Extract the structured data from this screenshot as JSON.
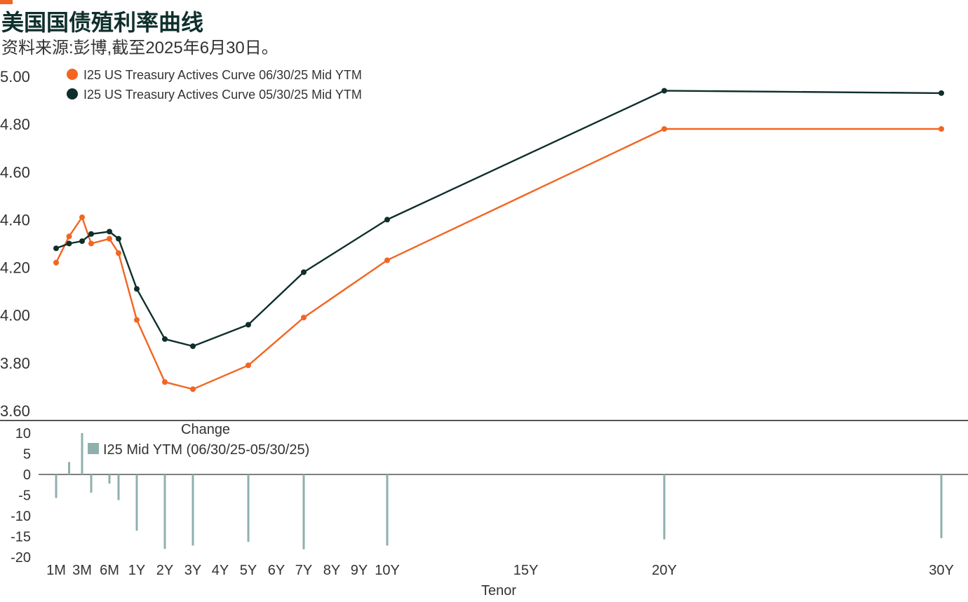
{
  "header": {
    "title": "美国国债殖利率曲线",
    "subtitle": "资料来源:彭博,截至2025年6月30日。"
  },
  "colors": {
    "accent": "#f26522",
    "series_jun": "#f26522",
    "series_may": "#0f2f2c",
    "change_bars": "#8fb0ad",
    "axis": "#555555",
    "text": "#333333"
  },
  "chart_data": [
    {
      "type": "line",
      "x_label_map": "tenor in years",
      "ylim": [
        3.6,
        5.0
      ],
      "y_ticks": [
        "5.00",
        "4.80",
        "4.60",
        "4.40",
        "4.20",
        "4.00",
        "3.80",
        "3.60"
      ],
      "legend_position": "top-left",
      "grid": false,
      "series": [
        {
          "name": "I25 US Treasury Actives Curve 06/30/25 Mid YTM",
          "color": "#f26522",
          "points": [
            {
              "tenor": 0.0833,
              "y": 4.22
            },
            {
              "tenor": 0.1667,
              "y": 4.33
            },
            {
              "tenor": 0.25,
              "y": 4.41
            },
            {
              "tenor": 0.3333,
              "y": 4.3
            },
            {
              "tenor": 0.5,
              "y": 4.32
            },
            {
              "tenor": 0.6667,
              "y": 4.26
            },
            {
              "tenor": 1,
              "y": 3.98
            },
            {
              "tenor": 2,
              "y": 3.72
            },
            {
              "tenor": 3,
              "y": 3.69
            },
            {
              "tenor": 5,
              "y": 3.79
            },
            {
              "tenor": 7,
              "y": 3.99
            },
            {
              "tenor": 10,
              "y": 4.23
            },
            {
              "tenor": 20,
              "y": 4.78
            },
            {
              "tenor": 30,
              "y": 4.78
            }
          ]
        },
        {
          "name": "I25 US Treasury Actives Curve 05/30/25 Mid YTM",
          "color": "#0f2f2c",
          "points": [
            {
              "tenor": 0.0833,
              "y": 4.28
            },
            {
              "tenor": 0.1667,
              "y": 4.3
            },
            {
              "tenor": 0.25,
              "y": 4.31
            },
            {
              "tenor": 0.3333,
              "y": 4.34
            },
            {
              "tenor": 0.5,
              "y": 4.35
            },
            {
              "tenor": 0.6667,
              "y": 4.32
            },
            {
              "tenor": 1,
              "y": 4.11
            },
            {
              "tenor": 2,
              "y": 3.9
            },
            {
              "tenor": 3,
              "y": 3.87
            },
            {
              "tenor": 5,
              "y": 3.96
            },
            {
              "tenor": 7,
              "y": 4.18
            },
            {
              "tenor": 10,
              "y": 4.4
            },
            {
              "tenor": 20,
              "y": 4.94
            },
            {
              "tenor": 30,
              "y": 4.93
            }
          ]
        }
      ]
    },
    {
      "type": "bar",
      "title": "Change",
      "xlabel": "Tenor",
      "ylim": [
        -20,
        10
      ],
      "y_ticks": [
        "10",
        "5",
        "0",
        "-5",
        "-10",
        "-15",
        "-20"
      ],
      "x_ticks": [
        {
          "tenor": 0.0833,
          "label": "1M"
        },
        {
          "tenor": 0.25,
          "label": "3M"
        },
        {
          "tenor": 0.5,
          "label": "6M"
        },
        {
          "tenor": 1,
          "label": "1Y"
        },
        {
          "tenor": 2,
          "label": "2Y"
        },
        {
          "tenor": 3,
          "label": "3Y"
        },
        {
          "tenor": 4,
          "label": "4Y"
        },
        {
          "tenor": 5,
          "label": "5Y"
        },
        {
          "tenor": 6,
          "label": "6Y"
        },
        {
          "tenor": 7,
          "label": "7Y"
        },
        {
          "tenor": 8,
          "label": "8Y"
        },
        {
          "tenor": 9,
          "label": "9Y"
        },
        {
          "tenor": 10,
          "label": "10Y"
        },
        {
          "tenor": 15,
          "label": "15Y"
        },
        {
          "tenor": 20,
          "label": "20Y"
        },
        {
          "tenor": 30,
          "label": "30Y"
        }
      ],
      "series": [
        {
          "name": "I25 Mid YTM (06/30/25-05/30/25)",
          "color": "#8fb0ad",
          "points": [
            {
              "tenor": 0.0833,
              "y": -5.7
            },
            {
              "tenor": 0.1667,
              "y": 3.0
            },
            {
              "tenor": 0.25,
              "y": 10.0
            },
            {
              "tenor": 0.3333,
              "y": -4.4
            },
            {
              "tenor": 0.5,
              "y": -2.2
            },
            {
              "tenor": 0.6667,
              "y": -6.2
            },
            {
              "tenor": 1,
              "y": -13.6
            },
            {
              "tenor": 2,
              "y": -18.0
            },
            {
              "tenor": 3,
              "y": -17.2
            },
            {
              "tenor": 5,
              "y": -16.3
            },
            {
              "tenor": 7,
              "y": -18.1
            },
            {
              "tenor": 10,
              "y": -17.2
            },
            {
              "tenor": 20,
              "y": -15.7
            },
            {
              "tenor": 30,
              "y": -15.4
            }
          ]
        }
      ]
    }
  ]
}
